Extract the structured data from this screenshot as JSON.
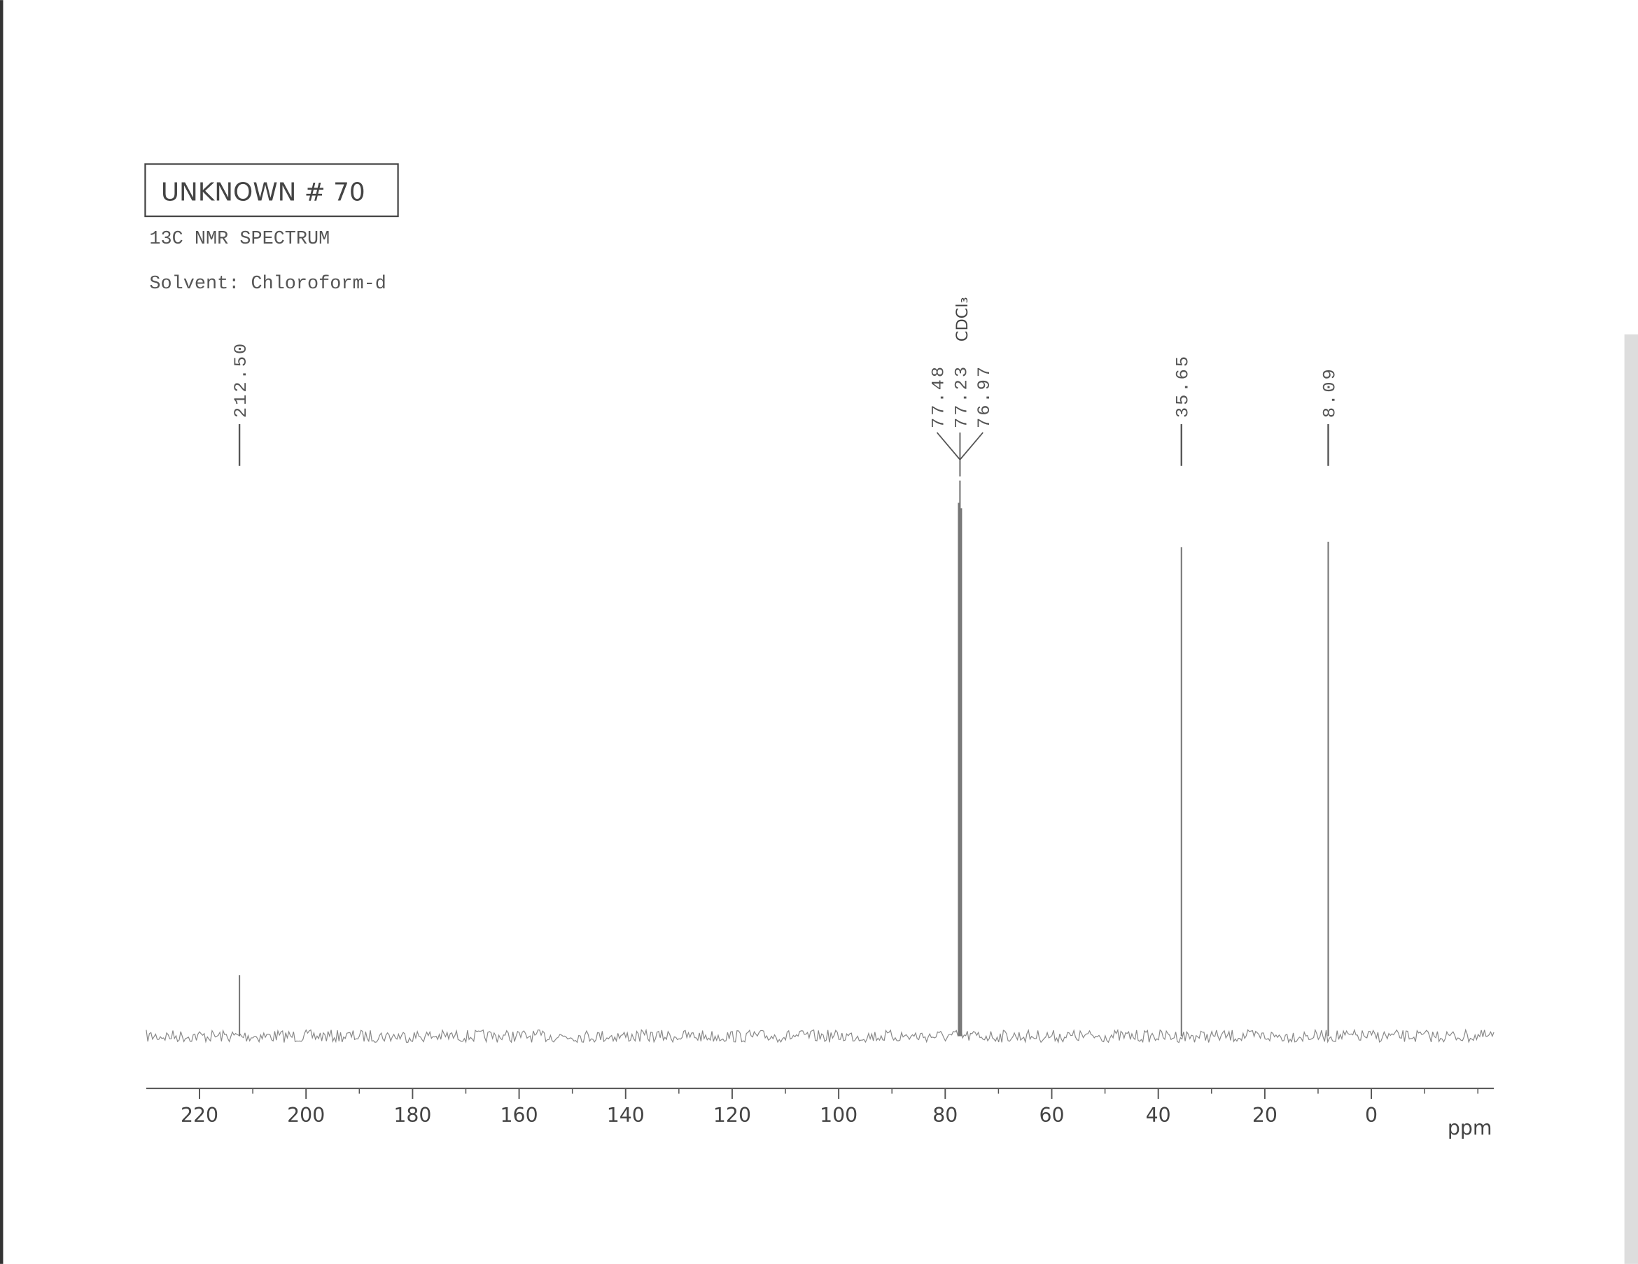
{
  "chart_data": {
    "type": "nmr",
    "title": "UNKNOWN # 70",
    "subtitle": "13C NMR SPECTRUM",
    "solvent": "Solvent: Chloroform-d",
    "annotation": "CDCl₃",
    "x_label": "ppm",
    "xlim": [
      230,
      -23
    ],
    "xticks": [
      220,
      200,
      180,
      160,
      140,
      120,
      100,
      80,
      60,
      40,
      20,
      0
    ],
    "minor_xticks": [
      210,
      190,
      170,
      150,
      130,
      110,
      90,
      70,
      50,
      30,
      10,
      -10,
      -20
    ],
    "x": [
      212.5,
      77.48,
      77.23,
      76.97,
      35.65,
      8.09
    ],
    "x_labels": [
      "212.50",
      "77.48",
      "77.23",
      "76.97",
      "35.65",
      "8.09"
    ],
    "values": [
      11,
      96,
      100,
      95,
      88,
      89
    ],
    "color": "#777777"
  }
}
